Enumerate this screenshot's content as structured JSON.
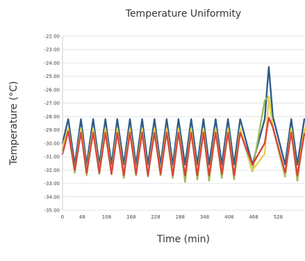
{
  "chart_data": {
    "type": "line",
    "title": "Temperature Uniformity",
    "xlabel": "Time (min)",
    "ylabel": "Temperature (°C)",
    "xlim": [
      0,
      592
    ],
    "ylim": [
      -35,
      -22
    ],
    "y_ticks": [
      "-22.00",
      "-23.00",
      "-24.00",
      "-25.00",
      "-26.00",
      "-27.00",
      "-28.00",
      "-29.00",
      "-30.00",
      "-31.00",
      "-32.00",
      "-33.00",
      "-34.00",
      "-35.00"
    ],
    "x_ticks": [
      "0",
      "48",
      "108",
      "168",
      "228",
      "288",
      "348",
      "408",
      "468",
      "528"
    ],
    "grid": "horizontal",
    "legend": "none",
    "series": [
      {
        "color": "#2e5c8a",
        "x": [
          0,
          14,
          30,
          45,
          59,
          75,
          90,
          105,
          120,
          134,
          150,
          165,
          180,
          195,
          209,
          225,
          240,
          255,
          270,
          284,
          300,
          315,
          330,
          345,
          359,
          375,
          390,
          405,
          420,
          435,
          465,
          495,
          505,
          515,
          545,
          560,
          575,
          592
        ],
        "y": [
          -30.0,
          -28.2,
          -31.6,
          -28.2,
          -31.6,
          -28.2,
          -31.6,
          -28.2,
          -31.6,
          -28.2,
          -31.6,
          -28.2,
          -31.6,
          -28.2,
          -31.6,
          -28.2,
          -31.6,
          -28.2,
          -31.6,
          -28.2,
          -31.6,
          -28.2,
          -31.6,
          -28.2,
          -31.6,
          -28.2,
          -31.6,
          -28.2,
          -31.6,
          -28.2,
          -31.6,
          -28.2,
          -24.3,
          -28.0,
          -31.6,
          -28.2,
          -31.6,
          -28.2
        ]
      },
      {
        "color": "#9bbb59",
        "x": [
          0,
          14,
          30,
          45,
          59,
          75,
          90,
          105,
          120,
          134,
          150,
          165,
          180,
          195,
          209,
          225,
          240,
          255,
          270,
          284,
          300,
          315,
          330,
          345,
          359,
          375,
          390,
          405,
          420,
          435,
          465,
          495,
          505,
          515,
          545,
          560,
          575,
          592
        ],
        "y": [
          -30.5,
          -29.0,
          -32.2,
          -29.0,
          -32.4,
          -29.0,
          -32.3,
          -29.0,
          -32.3,
          -29.0,
          -32.6,
          -29.0,
          -32.4,
          -29.0,
          -32.5,
          -29.0,
          -32.4,
          -29.0,
          -32.6,
          -29.0,
          -32.9,
          -29.0,
          -32.7,
          -29.0,
          -32.8,
          -29.0,
          -32.6,
          -29.0,
          -32.7,
          -29.0,
          -32.1,
          -26.8,
          -26.5,
          -28.8,
          -32.5,
          -29.0,
          -32.8,
          -29.0
        ]
      },
      {
        "color": "#e8d24a",
        "x": [
          0,
          14,
          30,
          45,
          59,
          75,
          90,
          105,
          120,
          134,
          150,
          165,
          180,
          195,
          209,
          225,
          240,
          255,
          270,
          284,
          300,
          315,
          330,
          345,
          359,
          375,
          390,
          405,
          420,
          435,
          465,
          495,
          505,
          515,
          545,
          560,
          575,
          592
        ],
        "y": [
          -30.3,
          -28.9,
          -32.0,
          -28.9,
          -32.1,
          -28.9,
          -32.1,
          -28.9,
          -32.2,
          -28.9,
          -32.3,
          -28.9,
          -32.2,
          -28.9,
          -32.3,
          -28.9,
          -32.2,
          -28.9,
          -32.3,
          -28.9,
          -32.4,
          -28.9,
          -32.3,
          -28.9,
          -32.4,
          -28.9,
          -32.3,
          -28.9,
          -32.4,
          -28.9,
          -32.0,
          -30.8,
          -26.5,
          -28.8,
          -32.3,
          -28.9,
          -32.4,
          -28.9
        ]
      },
      {
        "color": "#d9443a",
        "x": [
          0,
          14,
          30,
          45,
          59,
          75,
          90,
          105,
          120,
          134,
          150,
          165,
          180,
          195,
          209,
          225,
          240,
          255,
          270,
          284,
          300,
          315,
          330,
          345,
          359,
          375,
          390,
          405,
          420,
          435,
          465,
          495,
          505,
          515,
          545,
          560,
          575,
          592
        ],
        "y": [
          -30.8,
          -29.1,
          -32.0,
          -29.2,
          -32.2,
          -29.2,
          -32.2,
          -29.2,
          -32.3,
          -29.2,
          -32.4,
          -29.2,
          -32.3,
          -29.2,
          -32.4,
          -29.2,
          -32.3,
          -29.2,
          -32.4,
          -29.2,
          -32.4,
          -29.2,
          -32.4,
          -29.2,
          -32.4,
          -29.2,
          -32.3,
          -29.2,
          -32.4,
          -29.2,
          -31.6,
          -30.0,
          -28.1,
          -28.8,
          -32.2,
          -29.2,
          -32.4,
          -29.3
        ]
      }
    ]
  }
}
